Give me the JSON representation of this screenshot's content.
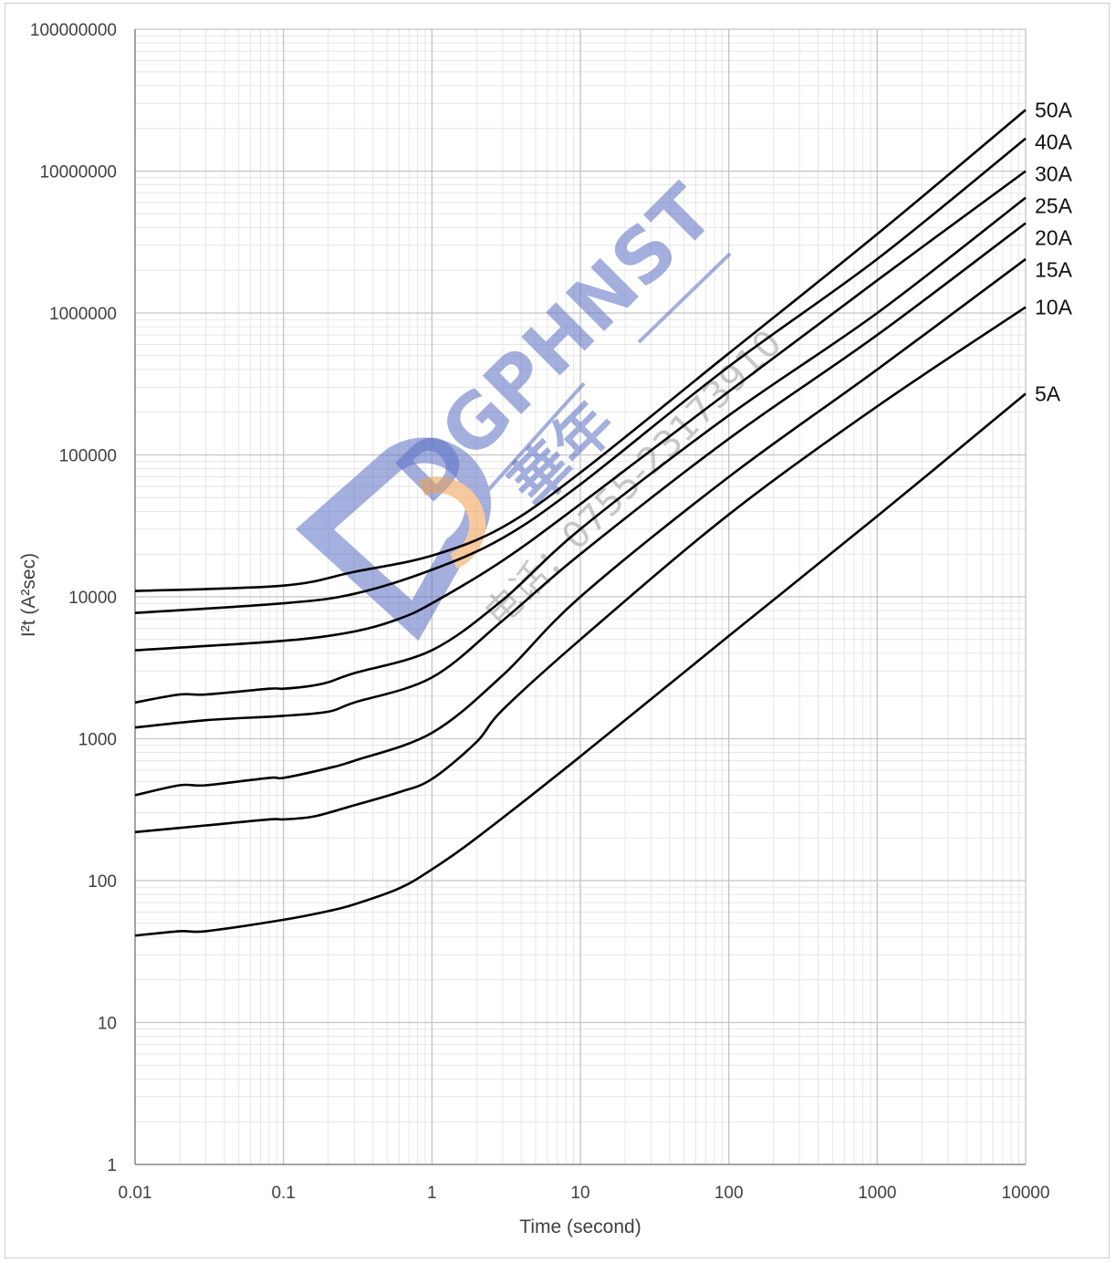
{
  "chart_data": {
    "type": "line",
    "x_scale": "log",
    "y_scale": "log",
    "xlim": [
      0.01,
      10000
    ],
    "ylim": [
      1,
      100000000
    ],
    "grid": true,
    "xlabel": "Time (second)",
    "ylabel": "I²t (A²sec)",
    "x_ticks": [
      "0.01",
      "0.1",
      "1",
      "10",
      "100",
      "1000",
      "10000"
    ],
    "y_ticks": [
      "1",
      "10",
      "100",
      "1000",
      "10000",
      "100000",
      "1000000",
      "10000000",
      "100000000"
    ],
    "series": [
      {
        "name": "50A",
        "color": "#000000",
        "x": [
          0.01,
          0.1,
          0.3,
          1,
          3,
          10,
          100,
          1000,
          10000
        ],
        "y": [
          11000,
          12000,
          15000,
          19500,
          31000,
          75000,
          520000,
          3600000,
          27000000
        ]
      },
      {
        "name": "40A",
        "color": "#000000",
        "x": [
          0.01,
          0.1,
          0.3,
          1,
          3,
          10,
          100,
          1000,
          10000
        ],
        "y": [
          7700,
          9000,
          10500,
          15500,
          26000,
          62000,
          420000,
          2400000,
          17000000
        ]
      },
      {
        "name": "30A",
        "color": "#000000",
        "x": [
          0.01,
          0.1,
          0.3,
          0.6,
          1,
          3,
          10,
          100,
          1000,
          10000
        ],
        "y": [
          4200,
          4900,
          5700,
          7000,
          9000,
          18000,
          45000,
          280000,
          1700000,
          10000000
        ]
      },
      {
        "name": "25A",
        "color": "#000000",
        "x": [
          0.01,
          0.02,
          0.03,
          0.08,
          0.1,
          0.15,
          0.2,
          0.3,
          1,
          3,
          10,
          100,
          1000,
          10000
        ],
        "y": [
          1800,
          2050,
          2050,
          2250,
          2250,
          2350,
          2500,
          2900,
          4200,
          9500,
          30000,
          190000,
          1000000,
          6500000
        ]
      },
      {
        "name": "20A",
        "color": "#000000",
        "x": [
          0.01,
          0.03,
          0.1,
          0.2,
          0.3,
          1,
          3,
          10,
          100,
          1000,
          10000
        ],
        "y": [
          1200,
          1350,
          1450,
          1550,
          1800,
          2700,
          6800,
          20000,
          130000,
          700000,
          4300000
        ]
      },
      {
        "name": "15A",
        "color": "#000000",
        "x": [
          0.01,
          0.02,
          0.03,
          0.08,
          0.1,
          0.2,
          0.3,
          1,
          3,
          10,
          100,
          1000,
          10000
        ],
        "y": [
          400,
          470,
          470,
          530,
          530,
          620,
          700,
          1100,
          2800,
          10000,
          70000,
          400000,
          2400000
        ]
      },
      {
        "name": "10A",
        "color": "#000000",
        "x": [
          0.01,
          0.03,
          0.08,
          0.1,
          0.15,
          0.2,
          0.3,
          0.6,
          1,
          2,
          3,
          10,
          100,
          1000,
          10000
        ],
        "y": [
          220,
          245,
          270,
          270,
          280,
          300,
          340,
          420,
          520,
          950,
          1600,
          5000,
          38000,
          220000,
          1100000
        ]
      },
      {
        "name": "5A",
        "color": "#000000",
        "x": [
          0.01,
          0.02,
          0.03,
          0.1,
          0.2,
          0.3,
          0.6,
          1,
          2,
          10,
          100,
          1000,
          10000
        ],
        "y": [
          41,
          44,
          44,
          53,
          61,
          68,
          88,
          120,
          200,
          750,
          5300,
          37000,
          270000
        ]
      }
    ]
  },
  "watermark": {
    "brand": "DGPHNST",
    "cn_name": "華年",
    "phone": "电话：0755-23173910",
    "color_blue": "#5a6fc4",
    "color_orange": "#f0a050",
    "color_gray": "#9a9a9a"
  }
}
